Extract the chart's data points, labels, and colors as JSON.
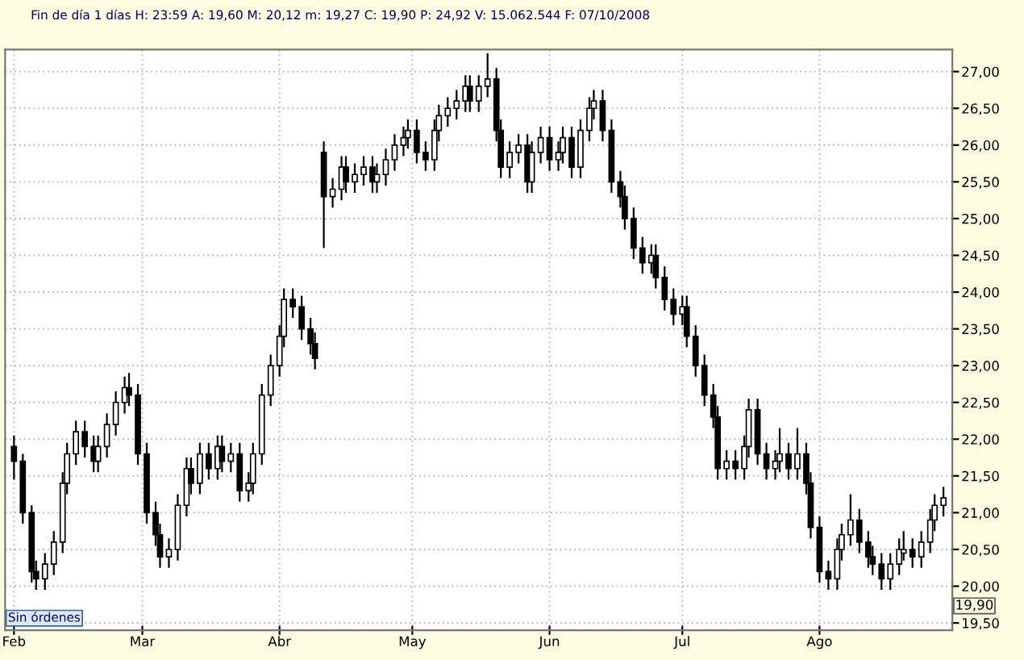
{
  "chart_data": {
    "type": "candlestick",
    "title": "Fin de día 1 días H: 23:59 A: 19,60 M: 20,12 m: 19,27 C: 19,90 P: 24,92 V: 15.062.544 F: 07/10/2008",
    "annotations": [
      "Sin órdenes",
      "19,90"
    ],
    "color": "#000000",
    "x": [
      "2008-02-01",
      "2008-02-03",
      "2008-02-05",
      "2008-02-06",
      "2008-02-08",
      "2008-02-10",
      "2008-02-12",
      "2008-02-13",
      "2008-02-15",
      "2008-02-17",
      "2008-02-19",
      "2008-02-20",
      "2008-02-22",
      "2008-02-24",
      "2008-02-26",
      "2008-02-27",
      "2008-02-29",
      "2008-03-02",
      "2008-03-04",
      "2008-03-05",
      "2008-03-07",
      "2008-03-09",
      "2008-03-11",
      "2008-03-12",
      "2008-03-14",
      "2008-03-16",
      "2008-03-18",
      "2008-03-19",
      "2008-03-21",
      "2008-03-23",
      "2008-03-25",
      "2008-03-26",
      "2008-03-28",
      "2008-03-30",
      "2008-04-01",
      "2008-04-02",
      "2008-04-04",
      "2008-04-06",
      "2008-04-08",
      "2008-04-09",
      "2008-04-11",
      "2008-04-13",
      "2008-04-15",
      "2008-04-16",
      "2008-04-18",
      "2008-04-20",
      "2008-04-22",
      "2008-04-23",
      "2008-04-25",
      "2008-04-27",
      "2008-04-29",
      "2008-04-30",
      "2008-05-02",
      "2008-05-04",
      "2008-05-06",
      "2008-05-07",
      "2008-05-09",
      "2008-05-11",
      "2008-05-13",
      "2008-05-14",
      "2008-05-16",
      "2008-05-18",
      "2008-05-20",
      "2008-05-21",
      "2008-05-23",
      "2008-05-25",
      "2008-05-27",
      "2008-05-28",
      "2008-05-30",
      "2008-06-01",
      "2008-06-03",
      "2008-06-04",
      "2008-06-06",
      "2008-06-08",
      "2008-06-10",
      "2008-06-11",
      "2008-06-13",
      "2008-06-15",
      "2008-06-17",
      "2008-06-18",
      "2008-06-20",
      "2008-06-22",
      "2008-06-24",
      "2008-06-25",
      "2008-06-27",
      "2008-06-29",
      "2008-07-01",
      "2008-07-02",
      "2008-07-04",
      "2008-07-06",
      "2008-07-08",
      "2008-07-09",
      "2008-07-11",
      "2008-07-13",
      "2008-07-15",
      "2008-07-16",
      "2008-07-18",
      "2008-07-20",
      "2008-07-22",
      "2008-07-23",
      "2008-07-25",
      "2008-07-27",
      "2008-07-29",
      "2008-07-30",
      "2008-08-01",
      "2008-08-03",
      "2008-08-05",
      "2008-08-06",
      "2008-08-08",
      "2008-08-10",
      "2008-08-12",
      "2008-08-13",
      "2008-08-15",
      "2008-08-17",
      "2008-08-19",
      "2008-08-20",
      "2008-08-22",
      "2008-08-24",
      "2008-08-26",
      "2008-08-27",
      "2008-08-29"
    ],
    "ohlc": [
      [
        21.9,
        22.05,
        21.45,
        21.7
      ],
      [
        21.7,
        21.8,
        20.85,
        21.0
      ],
      [
        21.0,
        21.1,
        20.05,
        20.2
      ],
      [
        20.2,
        20.35,
        19.95,
        20.1
      ],
      [
        20.1,
        20.45,
        19.95,
        20.3
      ],
      [
        20.3,
        20.75,
        20.15,
        20.6
      ],
      [
        20.6,
        21.55,
        20.45,
        21.4
      ],
      [
        21.4,
        21.95,
        21.25,
        21.8
      ],
      [
        21.8,
        22.25,
        21.65,
        22.1
      ],
      [
        22.1,
        22.25,
        21.75,
        21.9
      ],
      [
        21.9,
        22.05,
        21.55,
        21.7
      ],
      [
        21.7,
        22.05,
        21.55,
        21.9
      ],
      [
        21.9,
        22.35,
        21.75,
        22.2
      ],
      [
        22.2,
        22.65,
        22.05,
        22.5
      ],
      [
        22.5,
        22.85,
        22.35,
        22.7
      ],
      [
        22.7,
        22.9,
        22.45,
        22.6
      ],
      [
        22.6,
        22.75,
        21.65,
        21.8
      ],
      [
        21.8,
        21.95,
        20.85,
        21.0
      ],
      [
        21.0,
        21.15,
        20.55,
        20.7
      ],
      [
        20.7,
        20.85,
        20.25,
        20.4
      ],
      [
        20.4,
        20.65,
        20.25,
        20.5
      ],
      [
        20.5,
        21.25,
        20.35,
        21.1
      ],
      [
        21.1,
        21.75,
        20.95,
        21.6
      ],
      [
        21.6,
        21.75,
        21.25,
        21.4
      ],
      [
        21.4,
        21.95,
        21.25,
        21.8
      ],
      [
        21.8,
        21.95,
        21.45,
        21.6
      ],
      [
        21.6,
        22.05,
        21.45,
        21.9
      ],
      [
        21.9,
        22.05,
        21.55,
        21.7
      ],
      [
        21.7,
        21.95,
        21.55,
        21.8
      ],
      [
        21.8,
        21.95,
        21.15,
        21.3
      ],
      [
        21.3,
        21.55,
        21.15,
        21.4
      ],
      [
        21.4,
        21.95,
        21.25,
        21.8
      ],
      [
        21.8,
        22.75,
        21.65,
        22.6
      ],
      [
        22.6,
        23.15,
        22.45,
        23.0
      ],
      [
        23.0,
        23.55,
        22.85,
        23.4
      ],
      [
        23.4,
        24.05,
        23.25,
        23.9
      ],
      [
        23.9,
        24.05,
        23.65,
        23.8
      ],
      [
        23.8,
        23.95,
        23.35,
        23.5
      ],
      [
        23.5,
        23.65,
        23.15,
        23.3
      ],
      [
        23.3,
        23.45,
        22.95,
        23.1
      ],
      [
        25.9,
        26.05,
        24.6,
        25.3
      ],
      [
        25.3,
        25.55,
        25.15,
        25.4
      ],
      [
        25.4,
        25.85,
        25.25,
        25.7
      ],
      [
        25.7,
        25.85,
        25.35,
        25.5
      ],
      [
        25.5,
        25.75,
        25.35,
        25.6
      ],
      [
        25.6,
        25.85,
        25.45,
        25.7
      ],
      [
        25.7,
        25.85,
        25.35,
        25.5
      ],
      [
        25.5,
        25.75,
        25.35,
        25.6
      ],
      [
        25.6,
        25.95,
        25.45,
        25.8
      ],
      [
        25.8,
        26.15,
        25.65,
        26.0
      ],
      [
        26.0,
        26.25,
        25.85,
        26.1
      ],
      [
        26.1,
        26.35,
        25.95,
        26.2
      ],
      [
        26.2,
        26.35,
        25.75,
        25.9
      ],
      [
        25.9,
        26.05,
        25.65,
        25.8
      ],
      [
        25.8,
        26.35,
        25.65,
        26.2
      ],
      [
        26.2,
        26.55,
        26.05,
        26.4
      ],
      [
        26.4,
        26.65,
        26.25,
        26.5
      ],
      [
        26.5,
        26.75,
        26.35,
        26.6
      ],
      [
        26.6,
        26.95,
        26.45,
        26.8
      ],
      [
        26.8,
        26.95,
        26.45,
        26.6
      ],
      [
        26.6,
        26.95,
        26.45,
        26.8
      ],
      [
        26.8,
        27.25,
        26.65,
        26.9
      ],
      [
        26.9,
        27.05,
        26.05,
        26.2
      ],
      [
        26.2,
        26.35,
        25.55,
        25.7
      ],
      [
        25.7,
        26.05,
        25.55,
        25.9
      ],
      [
        25.9,
        26.15,
        25.75,
        26.0
      ],
      [
        26.0,
        26.15,
        25.35,
        25.5
      ],
      [
        25.5,
        26.05,
        25.35,
        25.9
      ],
      [
        25.9,
        26.25,
        25.75,
        26.1
      ],
      [
        26.1,
        26.25,
        25.65,
        25.8
      ],
      [
        25.8,
        26.05,
        25.65,
        25.9
      ],
      [
        25.9,
        26.25,
        25.75,
        26.1
      ],
      [
        26.1,
        26.25,
        25.55,
        25.7
      ],
      [
        25.7,
        26.35,
        25.55,
        26.2
      ],
      [
        26.2,
        26.65,
        26.05,
        26.5
      ],
      [
        26.5,
        26.75,
        26.35,
        26.6
      ],
      [
        26.6,
        26.75,
        26.05,
        26.2
      ],
      [
        26.2,
        26.35,
        25.35,
        25.5
      ],
      [
        25.5,
        25.65,
        25.15,
        25.3
      ],
      [
        25.3,
        25.45,
        24.85,
        25.0
      ],
      [
        25.0,
        25.15,
        24.45,
        24.6
      ],
      [
        24.6,
        24.75,
        24.25,
        24.4
      ],
      [
        24.4,
        24.65,
        24.25,
        24.5
      ],
      [
        24.5,
        24.65,
        24.05,
        24.2
      ],
      [
        24.2,
        24.35,
        23.75,
        23.9
      ],
      [
        23.9,
        24.05,
        23.55,
        23.7
      ],
      [
        23.7,
        23.95,
        23.55,
        23.8
      ],
      [
        23.8,
        23.95,
        23.25,
        23.4
      ],
      [
        23.4,
        23.55,
        22.85,
        23.0
      ],
      [
        23.0,
        23.15,
        22.45,
        22.6
      ],
      [
        22.6,
        22.75,
        22.15,
        22.3
      ],
      [
        22.3,
        22.45,
        21.45,
        21.6
      ],
      [
        21.6,
        21.85,
        21.45,
        21.7
      ],
      [
        21.7,
        21.85,
        21.45,
        21.6
      ],
      [
        21.6,
        22.05,
        21.45,
        21.9
      ],
      [
        21.9,
        22.55,
        21.75,
        22.4
      ],
      [
        22.4,
        22.55,
        21.65,
        21.8
      ],
      [
        21.8,
        21.95,
        21.45,
        21.6
      ],
      [
        21.6,
        21.85,
        21.45,
        21.7
      ],
      [
        21.7,
        22.15,
        21.55,
        21.8
      ],
      [
        21.8,
        21.95,
        21.45,
        21.6
      ],
      [
        21.6,
        22.15,
        21.45,
        21.8
      ],
      [
        21.8,
        21.95,
        21.25,
        21.4
      ],
      [
        21.4,
        21.55,
        20.65,
        20.8
      ],
      [
        20.8,
        20.95,
        20.05,
        20.2
      ],
      [
        20.2,
        20.35,
        19.95,
        20.1
      ],
      [
        20.1,
        20.65,
        19.95,
        20.5
      ],
      [
        20.5,
        20.85,
        20.35,
        20.7
      ],
      [
        20.7,
        21.25,
        20.55,
        20.9
      ],
      [
        20.9,
        21.05,
        20.45,
        20.6
      ],
      [
        20.6,
        20.75,
        20.25,
        20.4
      ],
      [
        20.4,
        20.55,
        20.15,
        20.3
      ],
      [
        20.3,
        20.45,
        19.95,
        20.1
      ],
      [
        20.1,
        20.45,
        19.95,
        20.3
      ],
      [
        20.3,
        20.65,
        20.15,
        20.5
      ],
      [
        20.45,
        20.75,
        20.35,
        20.5
      ],
      [
        20.5,
        20.65,
        20.25,
        20.4
      ],
      [
        20.4,
        20.75,
        20.25,
        20.6
      ],
      [
        20.6,
        21.05,
        20.45,
        20.9
      ],
      [
        20.9,
        21.25,
        20.75,
        21.1
      ],
      [
        21.1,
        21.35,
        20.95,
        21.2
      ]
    ],
    "xlim": [
      "2008-01-30",
      "2008-08-31"
    ],
    "xticks": [
      {
        "value": "2008-02-01",
        "label": "Feb"
      },
      {
        "value": "2008-03-01",
        "label": "Mar"
      },
      {
        "value": "2008-04-01",
        "label": "Abr"
      },
      {
        "value": "2008-05-01",
        "label": "May"
      },
      {
        "value": "2008-06-01",
        "label": "Jun"
      },
      {
        "value": "2008-07-01",
        "label": "Jul"
      },
      {
        "value": "2008-08-01",
        "label": "Ago"
      }
    ],
    "ylim": [
      19.4,
      27.3
    ],
    "yticks": [
      {
        "value": 19.5,
        "label": "19,50"
      },
      {
        "value": 20,
        "label": "20,00"
      },
      {
        "value": 20.5,
        "label": "20,50"
      },
      {
        "value": 21,
        "label": "21,00"
      },
      {
        "value": 21.5,
        "label": "21,50"
      },
      {
        "value": 22,
        "label": "22,00"
      },
      {
        "value": 22.5,
        "label": "22,50"
      },
      {
        "value": 23,
        "label": "23,00"
      },
      {
        "value": 23.5,
        "label": "23,50"
      },
      {
        "value": 24,
        "label": "24,00"
      },
      {
        "value": 24.5,
        "label": "24,50"
      },
      {
        "value": 25,
        "label": "25,00"
      },
      {
        "value": 25.5,
        "label": "25,50"
      },
      {
        "value": 26,
        "label": "26,00"
      },
      {
        "value": 26.5,
        "label": "26,50"
      },
      {
        "value": 27,
        "label": "27,00"
      }
    ],
    "grid": true
  }
}
